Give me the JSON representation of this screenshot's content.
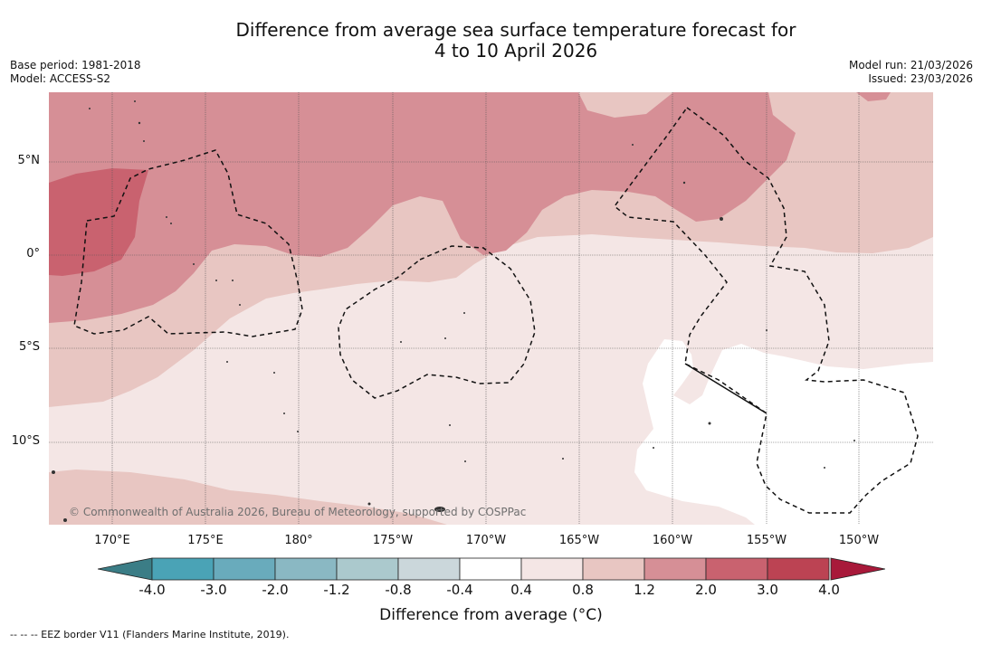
{
  "title": {
    "line1": "Difference from average sea surface temperature forecast for",
    "line2": "4 to 10 April 2026"
  },
  "meta": {
    "base_period": "Base period: 1981-2018",
    "model": "Model: ACCESS-S2",
    "model_run": "Model run: 21/03/2026",
    "issued": "Issued: 23/03/2026"
  },
  "map": {
    "latitude_labels": [
      "5°N",
      "0°",
      "5°S",
      "10°S"
    ],
    "longitude_labels": [
      "170°E",
      "175°E",
      "180°",
      "175°W",
      "170°W",
      "165°W",
      "160°W",
      "155°W",
      "150°W"
    ],
    "copyright": "© Commonwealth of Australia 2026, Bureau of Meteorology, supported by COSPPac"
  },
  "colorbar": {
    "label": "Difference from average (°C)",
    "ticks": [
      "-4.0",
      "-3.0",
      "-2.0",
      "-1.2",
      "-0.8",
      "-0.4",
      "0.4",
      "0.8",
      "1.2",
      "2.0",
      "3.0",
      "4.0"
    ],
    "colors": {
      "below_min": "#3b7d86",
      "bins": [
        "#4aa3b6",
        "#69abbc",
        "#8ab8c3",
        "#abc9cd",
        "#cbd7db",
        "#ffffff",
        "#f4e6e5",
        "#e8c6c2",
        "#d68f96",
        "#c9626f",
        "#bc4353"
      ],
      "above_max": "#a8193a"
    }
  },
  "footer": {
    "legend": "--  --  -- EEZ border V11 (Flanders Marine Institute, 2019)."
  }
}
